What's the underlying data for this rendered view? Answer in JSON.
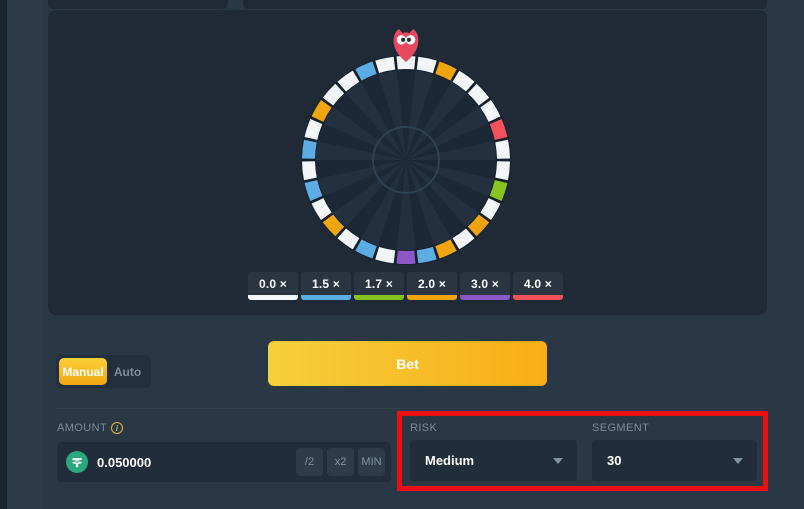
{
  "theme": {
    "page_bg": "#2a3744",
    "panel_bg": "#1f2a36",
    "field_bg": "#212d3a",
    "accent_yellow": "#f9b312",
    "annotation_red": "#ee0e0e",
    "muted_text": "#7d8d9c",
    "tether_green": "#2aa87d"
  },
  "game": {
    "mascot": "owl",
    "wheel": {
      "segment_count": 30,
      "segments": [
        "white",
        "white",
        "orange",
        "white",
        "white",
        "white",
        "red",
        "white",
        "white",
        "green",
        "white",
        "orange",
        "white",
        "orange",
        "blue",
        "purple",
        "white",
        "blue",
        "white",
        "orange",
        "white",
        "blue",
        "white",
        "blue",
        "white",
        "orange",
        "white",
        "white",
        "blue",
        "white"
      ],
      "colors": {
        "white": "#f2f6f8",
        "blue": "#5cade4",
        "green": "#88c41f",
        "orange": "#f0a50f",
        "purple": "#8d58c5",
        "red": "#f3525c"
      }
    },
    "multipliers": [
      {
        "label": "0.0 ×",
        "color": "#f2f6f8"
      },
      {
        "label": "1.5 ×",
        "color": "#5cade4"
      },
      {
        "label": "1.7 ×",
        "color": "#88c41f"
      },
      {
        "label": "2.0 ×",
        "color": "#f0a50f"
      },
      {
        "label": "3.0 ×",
        "color": "#8d58c5"
      },
      {
        "label": "4.0 ×",
        "color": "#f3525c"
      }
    ]
  },
  "controls": {
    "mode": {
      "manual_label": "Manual",
      "auto_label": "Auto",
      "selected": "Manual"
    },
    "bet_label": "Bet",
    "amount": {
      "label": "AMOUNT",
      "value": "0.050000",
      "currency_icon": "tether-coin",
      "half_label": "/2",
      "double_label": "x2",
      "min_label": "MIN"
    },
    "risk": {
      "label": "RISK",
      "value": "Medium"
    },
    "segment": {
      "label": "SEGMENT",
      "value": "30"
    }
  },
  "annotation": {
    "shape": "rectangle",
    "color": "#ee0e0e",
    "purpose": "highlights RISK and SEGMENT dropdowns"
  }
}
